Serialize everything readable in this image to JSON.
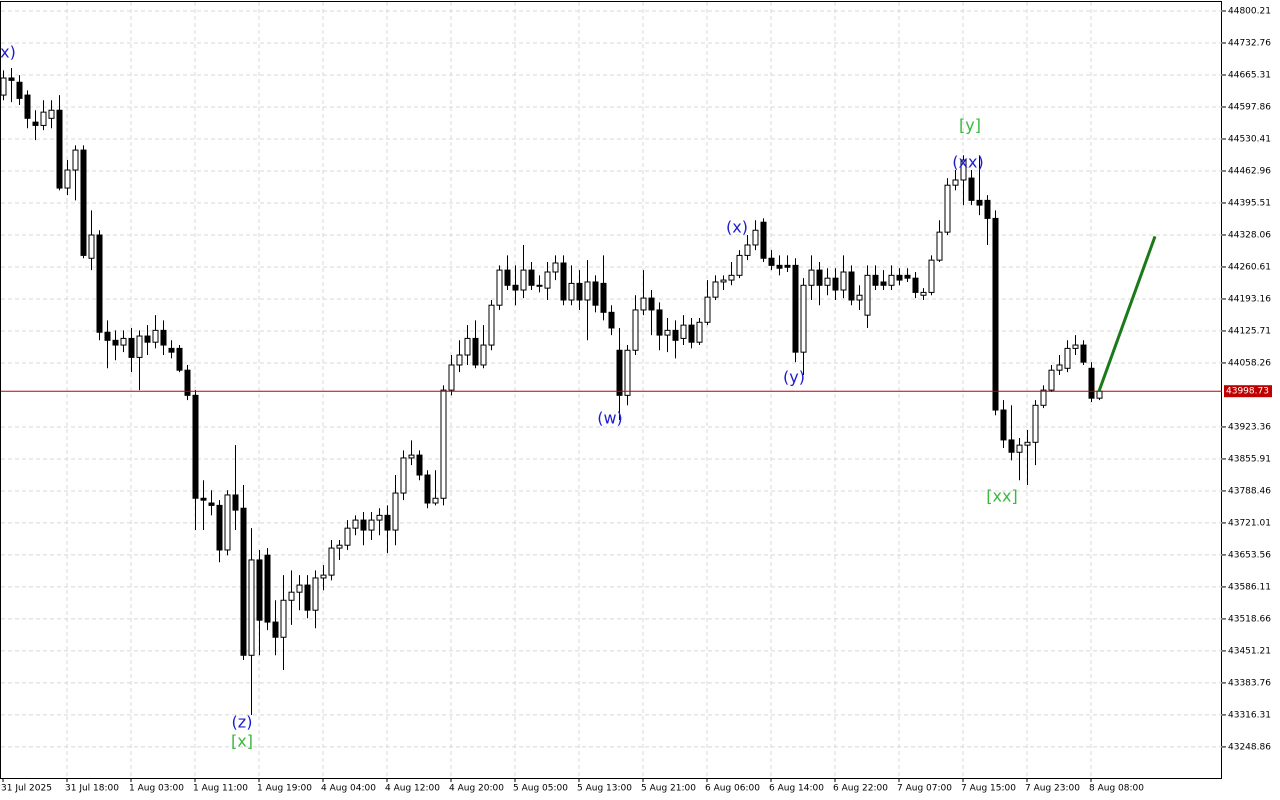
{
  "chart_data": {
    "type": "candlestick",
    "categories": [
      "31 Jul 2025",
      null,
      null,
      null,
      null,
      null,
      null,
      null,
      "31 Jul 18:00",
      null,
      null,
      null,
      null,
      null,
      null,
      null,
      "1 Aug 03:00",
      null,
      null,
      null,
      null,
      null,
      null,
      null,
      "1 Aug 11:00",
      null,
      null,
      null,
      null,
      null,
      null,
      null,
      "1 Aug 19:00",
      null,
      null,
      null,
      null,
      null,
      null,
      null,
      "4 Aug 04:00",
      null,
      null,
      null,
      null,
      null,
      null,
      null,
      "4 Aug 12:00",
      null,
      null,
      null,
      null,
      null,
      null,
      null,
      "4 Aug 20:00",
      null,
      null,
      null,
      null,
      null,
      null,
      null,
      "5 Aug 05:00",
      null,
      null,
      null,
      null,
      null,
      null,
      null,
      "5 Aug 13:00",
      null,
      null,
      null,
      null,
      null,
      null,
      null,
      "5 Aug 21:00",
      null,
      null,
      null,
      null,
      null,
      null,
      null,
      "6 Aug 06:00",
      null,
      null,
      null,
      null,
      null,
      null,
      null,
      "6 Aug 14:00",
      null,
      null,
      null,
      null,
      null,
      null,
      null,
      "6 Aug 22:00",
      null,
      null,
      null,
      null,
      null,
      null,
      null,
      "7 Aug 07:00",
      null,
      null,
      null,
      null,
      null,
      null,
      null,
      "7 Aug 15:00",
      null,
      null,
      null,
      null,
      null,
      null,
      null,
      "7 Aug 23:00",
      null,
      null,
      null,
      null,
      null,
      null,
      null,
      "8 Aug 08:00",
      null
    ],
    "open": [
      44623,
      44659,
      44650,
      44623,
      44566,
      44559,
      44574,
      44591,
      44427,
      44465,
      44507,
      44279,
      44328,
      44123,
      44106,
      44096,
      44110,
      44070,
      44115,
      44102,
      44127,
      44089,
      44089,
      44043,
      43990,
      43773,
      43763,
      43758,
      43664,
      43780,
      43752,
      43442,
      43643,
      43653,
      43512,
      43480,
      43558,
      43575,
      43590,
      43537,
      43605,
      43611,
      43668,
      43674,
      43710,
      43727,
      43706,
      43727,
      43737,
      43706,
      43784,
      43858,
      43864,
      43822,
      43763,
      43773,
      44001,
      44054,
      44075,
      44110,
      44054,
      44096,
      44180,
      44254,
      44222,
      44212,
      44254,
      44222,
      44216,
      44250,
      44269,
      44191,
      44226,
      44191,
      44229,
      44226,
      44165,
      44085,
      43990,
      44085,
      44170,
      44195,
      44170,
      44117,
      44127,
      44110,
      44138,
      44102,
      44144,
      44197,
      44229,
      44233,
      44243,
      44285,
      44307,
      44355,
      44279,
      44264,
      44264,
      44264,
      44081,
      44222,
      44254,
      44222,
      44237,
      44212,
      44250,
      44191,
      44159,
      44243,
      44229,
      44222,
      44243,
      44243,
      44237,
      44201,
      44207,
      44275,
      44334,
      44433,
      44444,
      44448,
      44401,
      44401,
      44363,
      43959,
      43896,
      43870,
      43885,
      43891,
      43969,
      44001,
      44043,
      44047,
      44089,
      44096,
      44047,
      43984
    ],
    "high": [
      44675,
      44680,
      44665,
      44633,
      44591,
      44612,
      44612,
      44623,
      44486,
      44517,
      44517,
      44380,
      44338,
      44148,
      44127,
      44127,
      44132,
      44127,
      44138,
      44159,
      44148,
      44106,
      44096,
      44054,
      44001,
      43811,
      43790,
      43769,
      43790,
      43885,
      43801,
      43710,
      43664,
      43668,
      43558,
      43611,
      43621,
      43611,
      43611,
      43621,
      43632,
      43685,
      43685,
      43727,
      43737,
      43744,
      43744,
      43752,
      43758,
      43822,
      43874,
      43895,
      43874,
      43832,
      43832,
      44011,
      44075,
      44106,
      44138,
      44148,
      44138,
      44191,
      44264,
      44285,
      44264,
      44307,
      44271,
      44243,
      44271,
      44285,
      44285,
      44264,
      44254,
      44275,
      44243,
      44285,
      44180,
      44132,
      44096,
      44201,
      44254,
      44212,
      44186,
      44153,
      44148,
      44159,
      44153,
      44153,
      44233,
      44243,
      44243,
      44271,
      44296,
      44328,
      44359,
      44363,
      44296,
      44285,
      44285,
      44279,
      44237,
      44285,
      44271,
      44258,
      44258,
      44285,
      44264,
      44222,
      44264,
      44264,
      44254,
      44264,
      44258,
      44258,
      44250,
      44216,
      44285,
      44359,
      44448,
      44465,
      44496,
      44465,
      44496,
      44412,
      44380,
      43980,
      43969,
      43900,
      43917,
      43980,
      44011,
      44054,
      44075,
      44106,
      44117,
      44106,
      44060,
      44005
    ],
    "low": [
      44612,
      44608,
      44602,
      44553,
      44528,
      44549,
      44553,
      44422,
      44412,
      44401,
      44279,
      44254,
      44106,
      44047,
      44064,
      44081,
      44039,
      44001,
      44075,
      44089,
      44075,
      44068,
      44039,
      43980,
      43706,
      43706,
      43737,
      43638,
      43653,
      43706,
      43432,
      43316,
      43442,
      43495,
      43442,
      43411,
      43506,
      43537,
      43520,
      43499,
      43579,
      43600,
      43643,
      43664,
      43695,
      43674,
      43685,
      43695,
      43657,
      43674,
      43769,
      43843,
      43811,
      43752,
      43758,
      43758,
      43990,
      44039,
      44054,
      44047,
      44047,
      44085,
      44170,
      44212,
      44180,
      44195,
      44212,
      44207,
      44191,
      44233,
      44180,
      44180,
      44170,
      44106,
      44165,
      44148,
      44117,
      43938,
      43969,
      44075,
      44159,
      44117,
      44085,
      44081,
      44068,
      44096,
      44089,
      44096,
      44138,
      44191,
      44212,
      44222,
      44237,
      44275,
      44296,
      44271,
      44254,
      44243,
      44250,
      44060,
      44033,
      44191,
      44180,
      44201,
      44191,
      44195,
      44180,
      44170,
      44132,
      44212,
      44212,
      44212,
      44222,
      44229,
      44195,
      44191,
      44201,
      44271,
      44328,
      44422,
      44391,
      44391,
      44370,
      44307,
      43948,
      43879,
      43853,
      43811,
      43801,
      43843,
      43963,
      43997,
      44033,
      44039,
      44075,
      44054,
      43976,
      43980
    ],
    "close": [
      44659,
      44654,
      44616,
      44574,
      44559,
      44587,
      44591,
      44427,
      44465,
      44507,
      44285,
      44328,
      44123,
      44106,
      44096,
      44110,
      44070,
      44115,
      44102,
      44127,
      44096,
      44081,
      44043,
      43990,
      43773,
      43769,
      43758,
      43664,
      43780,
      43748,
      43442,
      43643,
      43516,
      43512,
      43480,
      43558,
      43575,
      43590,
      43537,
      43605,
      43611,
      43668,
      43674,
      43710,
      43727,
      43706,
      43727,
      43737,
      43706,
      43784,
      43858,
      43864,
      43822,
      43763,
      43773,
      44001,
      44054,
      44075,
      44110,
      44054,
      44096,
      44180,
      44254,
      44222,
      44212,
      44254,
      44222,
      44222,
      44250,
      44269,
      44191,
      44226,
      44191,
      44229,
      44180,
      44165,
      44132,
      43990,
      44085,
      44170,
      44195,
      44170,
      44117,
      44127,
      44106,
      44138,
      44102,
      44144,
      44197,
      44229,
      44233,
      44243,
      44285,
      44307,
      44338,
      44279,
      44264,
      44258,
      44260,
      44081,
      44222,
      44254,
      44222,
      44237,
      44212,
      44250,
      44191,
      44201,
      44243,
      44222,
      44222,
      44243,
      44233,
      44237,
      44207,
      44207,
      44275,
      44334,
      44433,
      44444,
      44486,
      44401,
      44391,
      44363,
      43959,
      43896,
      43870,
      43885,
      43891,
      43969,
      44001,
      44043,
      44054,
      44089,
      44096,
      44060,
      43984,
      43998.73
    ],
    "ylim": [
      43183.3,
      44819.2
    ],
    "yticks": [
      44800.21,
      44732.76,
      44665.31,
      44597.86,
      44530.41,
      44462.96,
      44395.51,
      44328.06,
      44260.61,
      44193.16,
      44125.71,
      44058.26,
      43923.36,
      43855.91,
      43788.46,
      43721.01,
      43653.56,
      43586.11,
      43518.66,
      43451.21,
      43383.76,
      43316.31,
      43248.86
    ],
    "grid": true,
    "last_price": 43998.73,
    "last_price_color": "#c00000",
    "projection": {
      "values": [
        43998.73,
        44325
      ],
      "color": "#1a7a1a"
    },
    "annotations": [
      {
        "text": "x)",
        "color": "#1c1cd0"
      },
      {
        "text": "[y]",
        "color": "#3cb83c"
      },
      {
        "text": "(xx)",
        "color": "#1c1cd0"
      },
      {
        "text": "(x)",
        "color": "#1c1cd0"
      },
      {
        "text": "(y)",
        "color": "#1c1cd0"
      },
      {
        "text": "(w)",
        "color": "#1c1cd0"
      },
      {
        "text": "(z)",
        "color": "#1c1cd0"
      },
      {
        "text": "[x]",
        "color": "#3cb83c"
      },
      {
        "text": "[xx]",
        "color": "#3cb83c"
      }
    ]
  }
}
